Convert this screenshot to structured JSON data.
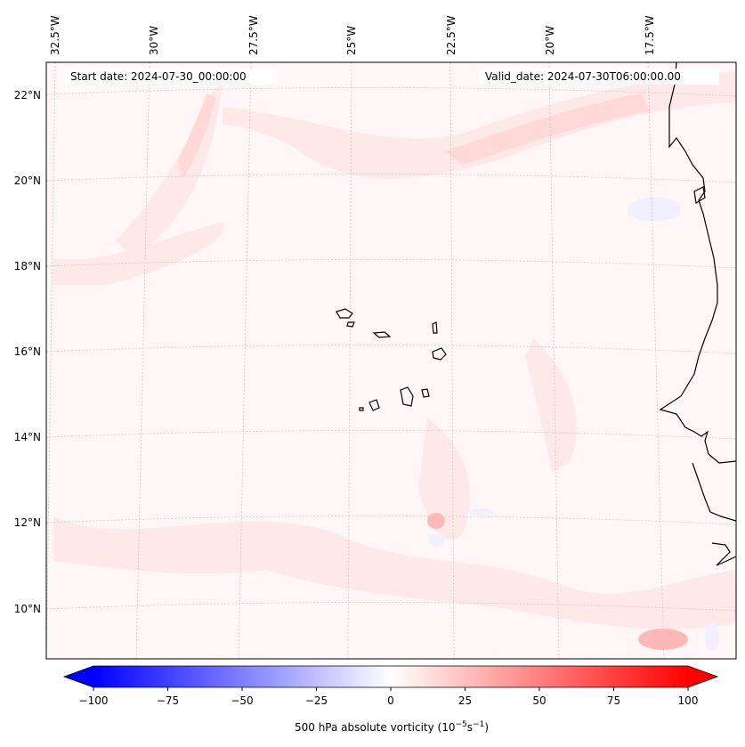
{
  "header": {
    "start_date": "Start date: 2024-07-30_00:00:00",
    "valid_date": "Valid_date: 2024-07-30T06:00:00.00"
  },
  "lon_labels": [
    "32.5°W",
    "30°W",
    "27.5°W",
    "25°W",
    "22.5°W",
    "20°W",
    "17.5°W"
  ],
  "lat_labels": [
    "22°N",
    "20°N",
    "18°N",
    "16°N",
    "14°N",
    "12°N",
    "10°N"
  ],
  "colorbar": {
    "label": "500 hPa absolute vorticity (10",
    "label_sup1": "−5",
    "label_mid": "s",
    "label_sup2": "−1",
    "label_end": ")",
    "ticks": [
      "−100",
      "−75",
      "−50",
      "−25",
      "0",
      "25",
      "50",
      "75",
      "100"
    ],
    "range": [
      -100,
      100
    ],
    "colormap": "bwr",
    "extend": "both"
  },
  "colors": {
    "weak_positive": "#fff0f0",
    "moderate_positive": "#ffdede",
    "strong_positive": "#ff9c9c",
    "weak_negative": "#f0f0ff",
    "coastline": "#000000",
    "gridline": "#c8c8c8"
  }
}
